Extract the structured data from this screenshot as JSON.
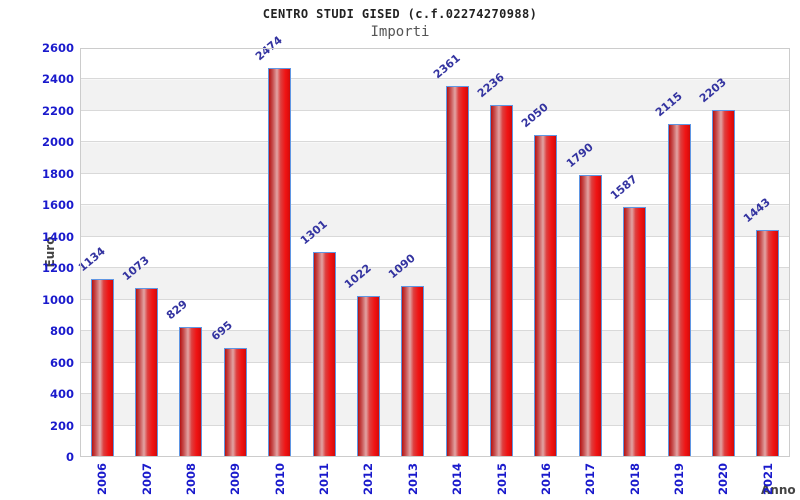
{
  "chart_data": {
    "type": "bar",
    "title": "CENTRO STUDI GISED (c.f.02274270988)",
    "subtitle": "Importi",
    "xlabel": "Anno",
    "ylabel": "Euro",
    "categories": [
      "2006",
      "2007",
      "2008",
      "2009",
      "2010",
      "2011",
      "2012",
      "2013",
      "2014",
      "2015",
      "2016",
      "2017",
      "2018",
      "2019",
      "2020",
      "2021"
    ],
    "values": [
      1134,
      1073,
      829,
      695,
      2474,
      1301,
      1022,
      1090,
      2361,
      2236,
      2050,
      1790,
      1587,
      2115,
      2203,
      1443
    ],
    "ylim": [
      0,
      2600
    ],
    "ytick_step": 200,
    "grid": true,
    "legend": "none",
    "plot_background": "alternating horizontal white/gray bands every 200 units",
    "bar_value_labels_rotated_deg": -40,
    "x_tick_labels_rotated_deg": -90,
    "colors": {
      "bar_fill": "#e01010",
      "bar_highlight": "#e2a4a4",
      "bar_border": "#5f96e3",
      "axis_tick_label": "#1a1acc",
      "value_label": "#3333a0",
      "band_gray": "#f2f2f2",
      "gridline": "#d9d9d9",
      "plot_border": "#cccccc",
      "title": "#222222",
      "subtitle": "#555555",
      "axis_title": "#444444"
    }
  }
}
